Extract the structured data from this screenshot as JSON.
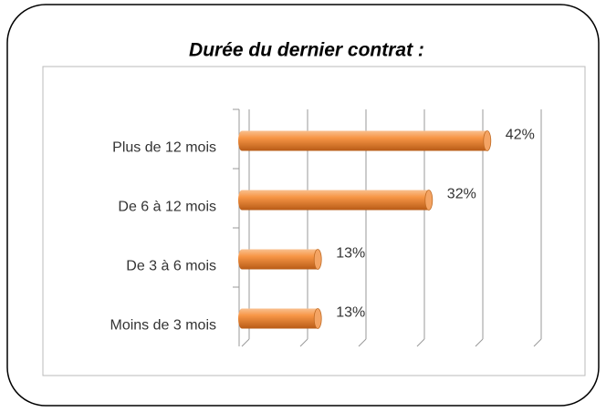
{
  "chart_data": {
    "type": "bar",
    "orientation": "horizontal",
    "title": "Durée du dernier contrat :",
    "categories": [
      "Plus de 12 mois",
      "De 6 à 12 mois",
      "De 3 à 6 mois",
      "Moins de 3 mois"
    ],
    "values": [
      42,
      32,
      13,
      13
    ],
    "value_labels": [
      "42%",
      "32%",
      "13%",
      "13%"
    ],
    "color": "#f79646",
    "xlim": [
      0,
      50
    ],
    "xticks": [
      0,
      10,
      20,
      30,
      40,
      50
    ],
    "grid": true
  }
}
